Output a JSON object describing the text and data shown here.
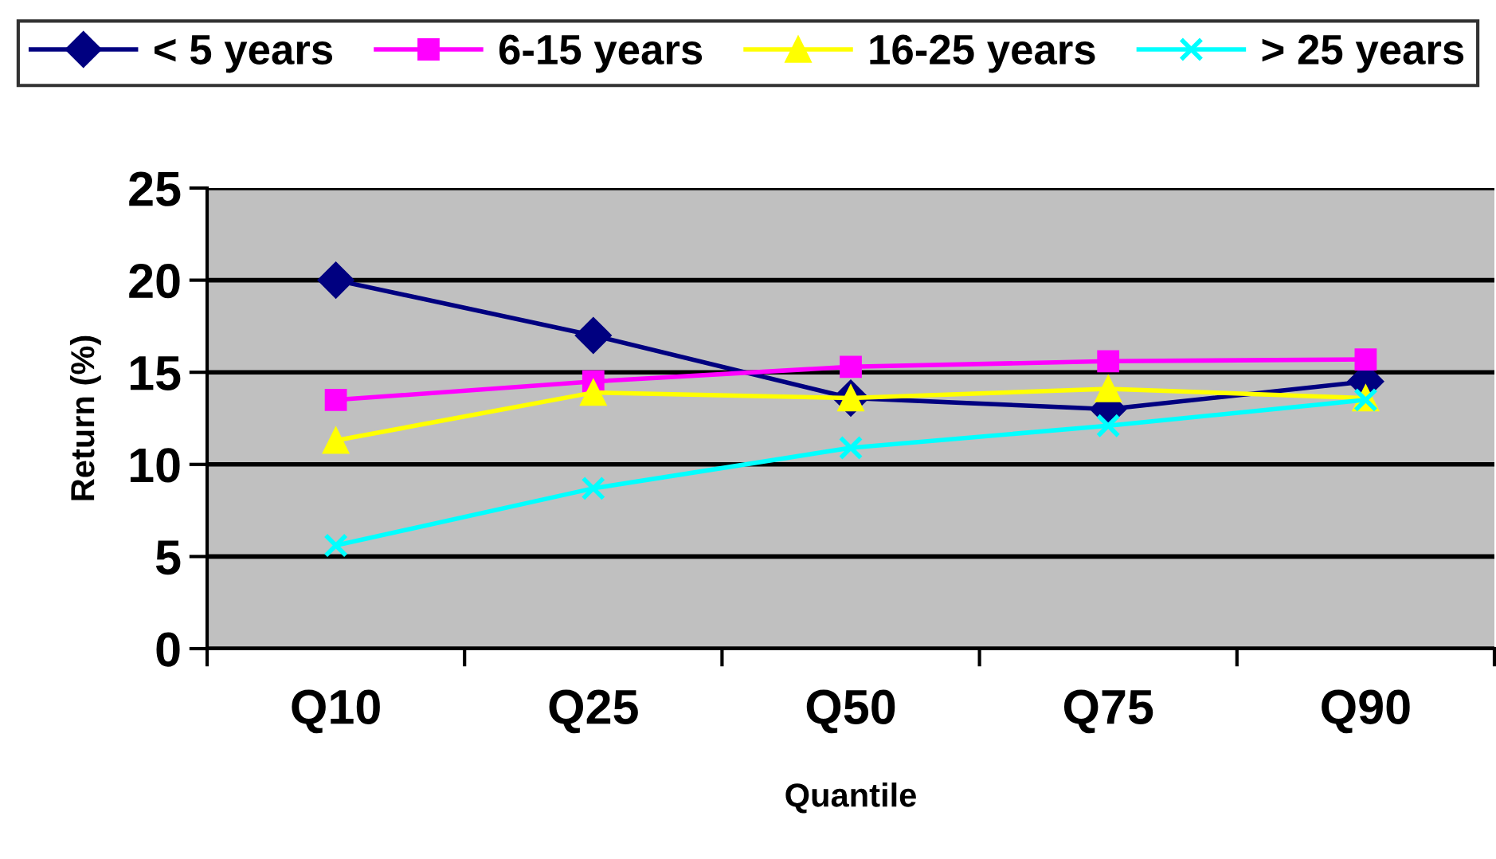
{
  "chart_data": {
    "type": "line",
    "xlabel": "Quantile",
    "ylabel": "Return (%)",
    "categories": [
      "Q10",
      "Q25",
      "Q50",
      "Q75",
      "Q90"
    ],
    "series": [
      {
        "name": "< 5 years",
        "color": "#000080",
        "marker": "diamond",
        "values": [
          20,
          17,
          13.6,
          13.0,
          14.5
        ]
      },
      {
        "name": "6-15 years",
        "color": "#ff00ff",
        "marker": "square",
        "values": [
          13.5,
          14.5,
          15.3,
          15.6,
          15.7
        ]
      },
      {
        "name": "16-25 years",
        "color": "#ffff00",
        "marker": "triangle",
        "values": [
          11.3,
          13.9,
          13.6,
          14.1,
          13.6
        ]
      },
      {
        "name": "> 25 years",
        "color": "#00ffff",
        "marker": "cross",
        "values": [
          5.6,
          8.7,
          10.9,
          12.1,
          13.5
        ]
      }
    ],
    "ylim": [
      0,
      25
    ],
    "yticks": [
      0,
      5,
      10,
      15,
      20,
      25
    ],
    "grid": "y",
    "legend": "top",
    "line_style": "solid"
  }
}
